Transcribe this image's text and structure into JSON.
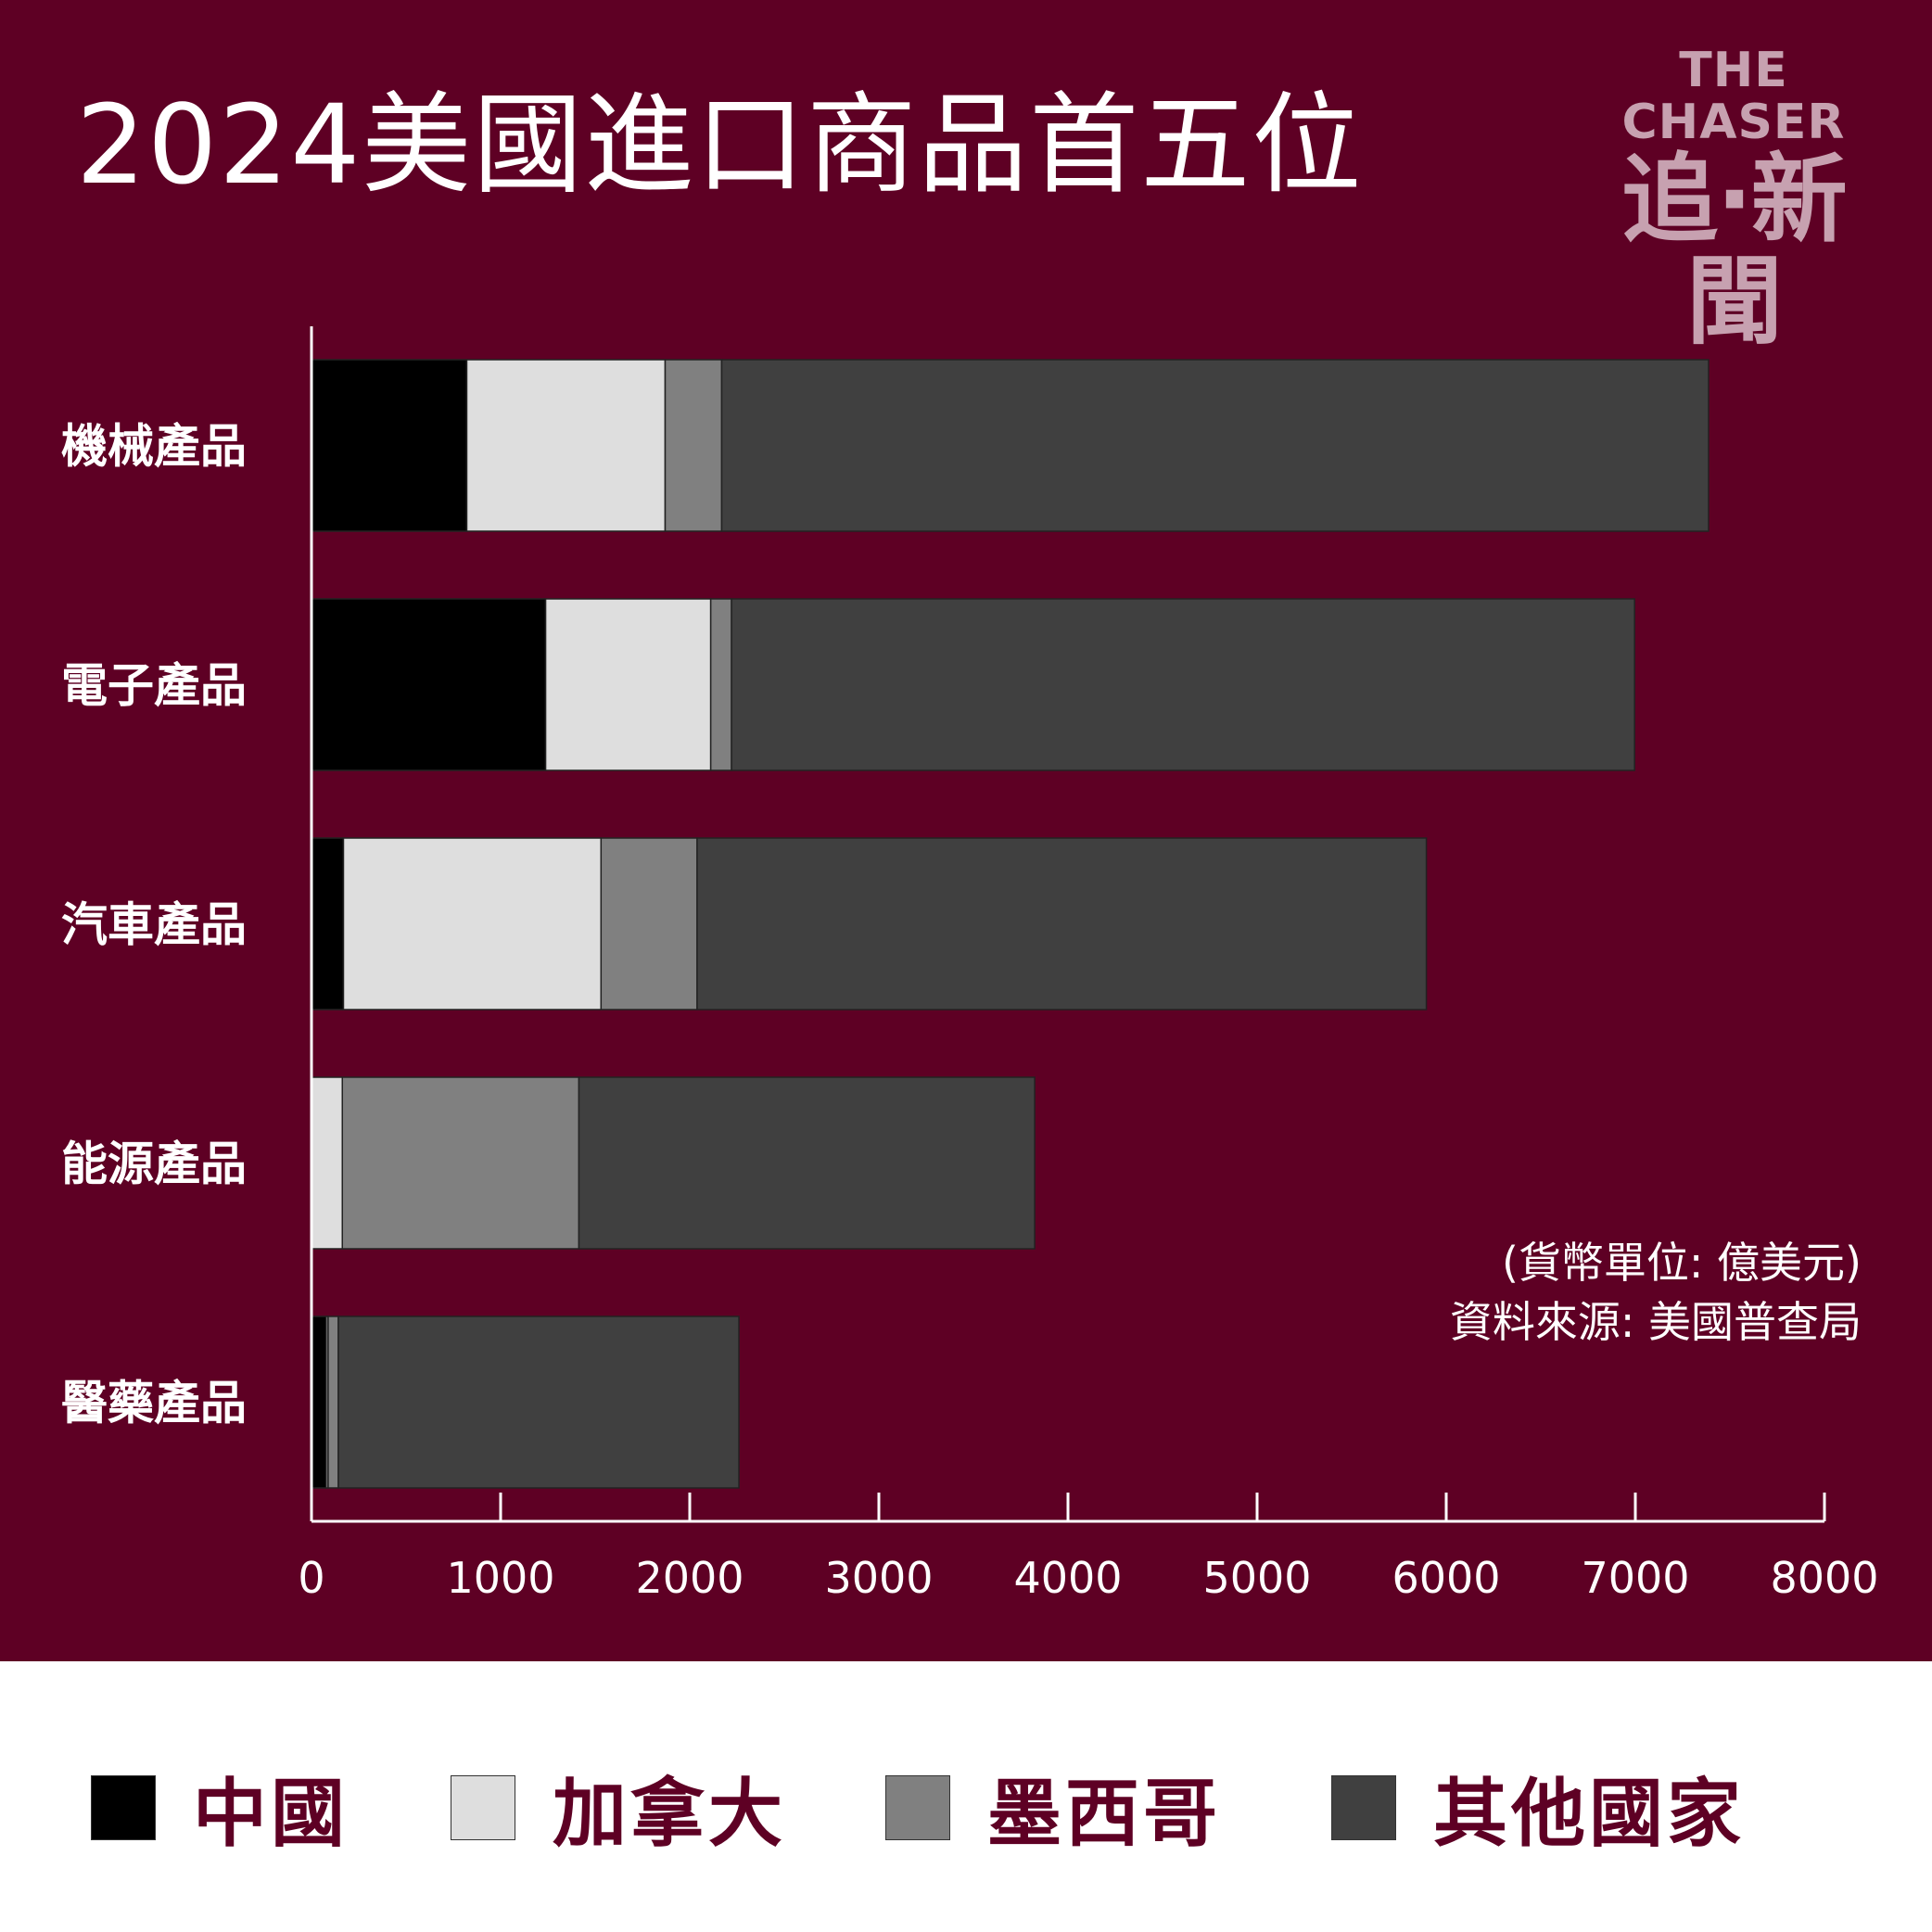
{
  "title": "2024美國進口商品首五位",
  "logo": {
    "en": "THE CHASER",
    "zh": "追·新聞"
  },
  "note": {
    "unit": "(貨幣單位: 億美元)",
    "source": "資料來源: 美國普查局"
  },
  "colors": {
    "background": "#5e0024",
    "China": "#000000",
    "Canada": "#dedede",
    "Mexico": "#808080",
    "Other": "#404040"
  },
  "chart_data": {
    "type": "bar",
    "orientation": "horizontal",
    "stacked": true,
    "title": "2024美國進口商品首五位",
    "categories": [
      "機械產品",
      "電子產品",
      "汽車產品",
      "能源產品",
      "醫藥產品"
    ],
    "series": [
      {
        "name": "中國",
        "color": "#000000",
        "values": [
          821,
          1238,
          169,
          0,
          78
        ]
      },
      {
        "name": "加拿大",
        "color": "#dedede",
        "values": [
          1049,
          873,
          1362,
          163,
          10
        ]
      },
      {
        "name": "墨西哥",
        "color": "#808080",
        "values": [
          299,
          110,
          508,
          1251,
          54
        ]
      },
      {
        "name": "其他國家",
        "color": "#404040",
        "values": [
          5218,
          4775,
          3856,
          2410,
          2118
        ]
      }
    ],
    "xlim": [
      0,
      8000
    ],
    "xticks": [
      "0",
      "1000",
      "2000",
      "3000",
      "4000",
      "5000",
      "6000",
      "7000",
      "8000"
    ],
    "xlabel": "",
    "ylabel": "",
    "unit": "億美元",
    "legend_position": "bottom",
    "grid": false
  }
}
